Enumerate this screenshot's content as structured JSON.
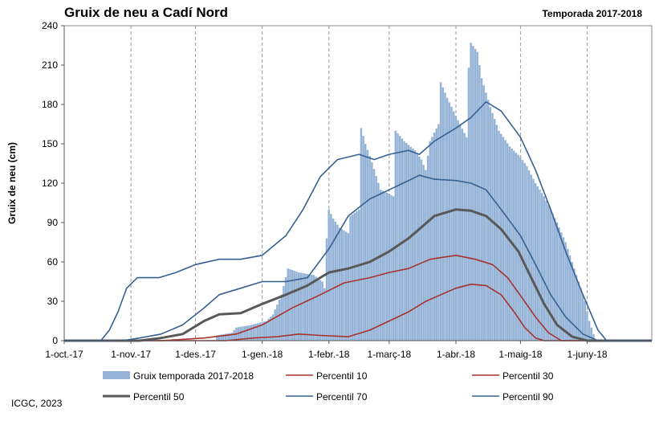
{
  "header": {
    "title": "Gruix de neu a Cadí Nord",
    "season": "Temporada 2017-2018"
  },
  "footer": {
    "credit": "ICGC, 2023"
  },
  "chart_data": {
    "type": "bar",
    "ylabel": "Gruix de neu (cm)",
    "ylim": [
      0,
      240
    ],
    "yticks": [
      0,
      30,
      60,
      90,
      120,
      150,
      180,
      210,
      240
    ],
    "grid": "vertical dashed at month starts",
    "xdomain": [
      "2017-10-01",
      "2018-07-01"
    ],
    "month_ticks": [
      {
        "date": "2017-10-01",
        "label": "1-oct.-17"
      },
      {
        "date": "2017-11-01",
        "label": "1-nov.-17"
      },
      {
        "date": "2017-12-01",
        "label": "1-des.-17"
      },
      {
        "date": "2018-01-01",
        "label": "1-gen.-18"
      },
      {
        "date": "2018-02-01",
        "label": "1-febr.-18"
      },
      {
        "date": "2018-03-01",
        "label": "1-març-18"
      },
      {
        "date": "2018-04-01",
        "label": "1-abr.-18"
      },
      {
        "date": "2018-05-01",
        "label": "1-maig-18"
      },
      {
        "date": "2018-06-01",
        "label": "1-juny-18"
      }
    ],
    "bars": {
      "name": "Gruix temporada 2017-2018",
      "color": "#95b3d7",
      "points": [
        [
          "2017-12-10",
          0
        ],
        [
          "2017-12-11",
          4
        ],
        [
          "2017-12-18",
          6
        ],
        [
          "2017-12-20",
          10
        ],
        [
          "2017-12-27",
          12
        ],
        [
          "2018-01-03",
          15
        ],
        [
          "2018-01-06",
          20
        ],
        [
          "2018-01-10",
          35
        ],
        [
          "2018-01-13",
          55
        ],
        [
          "2018-01-18",
          52
        ],
        [
          "2018-01-25",
          50
        ],
        [
          "2018-01-29",
          45
        ],
        [
          "2018-01-30",
          40
        ],
        [
          "2018-01-31",
          78
        ],
        [
          "2018-02-01",
          100
        ],
        [
          "2018-02-03",
          93
        ],
        [
          "2018-02-06",
          86
        ],
        [
          "2018-02-10",
          82
        ],
        [
          "2018-02-11",
          95
        ],
        [
          "2018-02-15",
          100
        ],
        [
          "2018-02-16",
          162
        ],
        [
          "2018-02-18",
          150
        ],
        [
          "2018-02-21",
          136
        ],
        [
          "2018-02-25",
          115
        ],
        [
          "2018-03-01",
          112
        ],
        [
          "2018-03-03",
          110
        ],
        [
          "2018-03-04",
          160
        ],
        [
          "2018-03-08",
          152
        ],
        [
          "2018-03-13",
          145
        ],
        [
          "2018-03-16",
          138
        ],
        [
          "2018-03-18",
          130
        ],
        [
          "2018-03-20",
          152
        ],
        [
          "2018-03-24",
          165
        ],
        [
          "2018-03-25",
          197
        ],
        [
          "2018-03-28",
          185
        ],
        [
          "2018-04-02",
          168
        ],
        [
          "2018-04-06",
          155
        ],
        [
          "2018-04-07",
          208
        ],
        [
          "2018-04-08",
          227
        ],
        [
          "2018-04-11",
          220
        ],
        [
          "2018-04-13",
          200
        ],
        [
          "2018-04-17",
          178
        ],
        [
          "2018-04-21",
          160
        ],
        [
          "2018-04-26",
          148
        ],
        [
          "2018-05-01",
          140
        ],
        [
          "2018-05-04",
          133
        ],
        [
          "2018-05-08",
          120
        ],
        [
          "2018-05-12",
          110
        ],
        [
          "2018-05-15",
          100
        ],
        [
          "2018-05-18",
          90
        ],
        [
          "2018-05-22",
          75
        ],
        [
          "2018-05-26",
          55
        ],
        [
          "2018-05-28",
          45
        ],
        [
          "2018-05-31",
          30
        ],
        [
          "2018-06-02",
          15
        ],
        [
          "2018-06-04",
          5
        ],
        [
          "2018-06-05",
          0
        ]
      ]
    },
    "series": [
      {
        "name": "Percentil 10",
        "color": "#a8322e",
        "width": 1.6,
        "points": [
          [
            "2017-10-01",
            0
          ],
          [
            "2017-12-15",
            0
          ],
          [
            "2017-12-28",
            2
          ],
          [
            "2018-01-08",
            3
          ],
          [
            "2018-01-18",
            5
          ],
          [
            "2018-01-28",
            4
          ],
          [
            "2018-02-10",
            3
          ],
          [
            "2018-02-20",
            8
          ],
          [
            "2018-03-01",
            15
          ],
          [
            "2018-03-10",
            22
          ],
          [
            "2018-03-18",
            30
          ],
          [
            "2018-03-25",
            35
          ],
          [
            "2018-04-01",
            40
          ],
          [
            "2018-04-08",
            43
          ],
          [
            "2018-04-15",
            42
          ],
          [
            "2018-04-22",
            35
          ],
          [
            "2018-04-28",
            22
          ],
          [
            "2018-05-03",
            10
          ],
          [
            "2018-05-08",
            2
          ],
          [
            "2018-05-12",
            0
          ],
          [
            "2018-07-01",
            0
          ]
        ]
      },
      {
        "name": "Percentil 30",
        "color": "#a8322e",
        "width": 1.6,
        "points": [
          [
            "2017-10-01",
            0
          ],
          [
            "2017-11-15",
            0
          ],
          [
            "2017-11-25",
            1
          ],
          [
            "2017-12-05",
            2
          ],
          [
            "2017-12-20",
            5
          ],
          [
            "2018-01-01",
            12
          ],
          [
            "2018-01-15",
            25
          ],
          [
            "2018-01-28",
            35
          ],
          [
            "2018-02-08",
            44
          ],
          [
            "2018-02-20",
            48
          ],
          [
            "2018-03-01",
            52
          ],
          [
            "2018-03-10",
            55
          ],
          [
            "2018-03-20",
            62
          ],
          [
            "2018-04-01",
            65
          ],
          [
            "2018-04-10",
            62
          ],
          [
            "2018-04-18",
            58
          ],
          [
            "2018-04-25",
            48
          ],
          [
            "2018-05-02",
            32
          ],
          [
            "2018-05-08",
            18
          ],
          [
            "2018-05-14",
            6
          ],
          [
            "2018-05-20",
            0
          ],
          [
            "2018-07-01",
            0
          ]
        ]
      },
      {
        "name": "Percentil 50",
        "color": "#595959",
        "width": 3.0,
        "points": [
          [
            "2017-10-01",
            0
          ],
          [
            "2017-11-05",
            0
          ],
          [
            "2017-11-15",
            2
          ],
          [
            "2017-11-25",
            5
          ],
          [
            "2017-12-05",
            15
          ],
          [
            "2017-12-12",
            20
          ],
          [
            "2017-12-22",
            21
          ],
          [
            "2018-01-01",
            28
          ],
          [
            "2018-01-12",
            35
          ],
          [
            "2018-01-22",
            42
          ],
          [
            "2018-02-01",
            52
          ],
          [
            "2018-02-10",
            55
          ],
          [
            "2018-02-20",
            60
          ],
          [
            "2018-03-01",
            68
          ],
          [
            "2018-03-10",
            78
          ],
          [
            "2018-03-15",
            85
          ],
          [
            "2018-03-22",
            95
          ],
          [
            "2018-04-01",
            100
          ],
          [
            "2018-04-08",
            99
          ],
          [
            "2018-04-15",
            95
          ],
          [
            "2018-04-22",
            85
          ],
          [
            "2018-04-30",
            68
          ],
          [
            "2018-05-06",
            48
          ],
          [
            "2018-05-12",
            28
          ],
          [
            "2018-05-18",
            12
          ],
          [
            "2018-05-25",
            3
          ],
          [
            "2018-06-01",
            0
          ],
          [
            "2018-07-01",
            0
          ]
        ]
      },
      {
        "name": "Percentil 70",
        "color": "#376092",
        "width": 1.6,
        "points": [
          [
            "2017-10-01",
            0
          ],
          [
            "2017-10-28",
            0
          ],
          [
            "2017-11-05",
            2
          ],
          [
            "2017-11-15",
            5
          ],
          [
            "2017-11-25",
            12
          ],
          [
            "2017-12-05",
            25
          ],
          [
            "2017-12-12",
            35
          ],
          [
            "2017-12-22",
            40
          ],
          [
            "2018-01-01",
            45
          ],
          [
            "2018-01-12",
            45
          ],
          [
            "2018-01-22",
            48
          ],
          [
            "2018-02-01",
            70
          ],
          [
            "2018-02-10",
            95
          ],
          [
            "2018-02-20",
            108
          ],
          [
            "2018-03-01",
            115
          ],
          [
            "2018-03-10",
            122
          ],
          [
            "2018-03-15",
            126
          ],
          [
            "2018-03-22",
            123
          ],
          [
            "2018-04-01",
            122
          ],
          [
            "2018-04-08",
            120
          ],
          [
            "2018-04-15",
            115
          ],
          [
            "2018-04-22",
            100
          ],
          [
            "2018-05-01",
            80
          ],
          [
            "2018-05-08",
            58
          ],
          [
            "2018-05-15",
            35
          ],
          [
            "2018-05-22",
            18
          ],
          [
            "2018-05-30",
            5
          ],
          [
            "2018-06-06",
            0
          ],
          [
            "2018-07-01",
            0
          ]
        ]
      },
      {
        "name": "Percentil 90",
        "color": "#376092",
        "width": 1.6,
        "points": [
          [
            "2017-10-01",
            0
          ],
          [
            "2017-10-18",
            0
          ],
          [
            "2017-10-22",
            8
          ],
          [
            "2017-10-26",
            22
          ],
          [
            "2017-10-30",
            40
          ],
          [
            "2017-11-04",
            48
          ],
          [
            "2017-11-14",
            48
          ],
          [
            "2017-11-22",
            52
          ],
          [
            "2017-12-01",
            58
          ],
          [
            "2017-12-12",
            62
          ],
          [
            "2017-12-22",
            62
          ],
          [
            "2018-01-01",
            65
          ],
          [
            "2018-01-12",
            80
          ],
          [
            "2018-01-20",
            100
          ],
          [
            "2018-01-28",
            125
          ],
          [
            "2018-02-05",
            138
          ],
          [
            "2018-02-15",
            142
          ],
          [
            "2018-02-22",
            138
          ],
          [
            "2018-03-01",
            142
          ],
          [
            "2018-03-10",
            145
          ],
          [
            "2018-03-15",
            142
          ],
          [
            "2018-03-22",
            152
          ],
          [
            "2018-04-01",
            162
          ],
          [
            "2018-04-08",
            170
          ],
          [
            "2018-04-15",
            182
          ],
          [
            "2018-04-22",
            175
          ],
          [
            "2018-05-01",
            155
          ],
          [
            "2018-05-08",
            130
          ],
          [
            "2018-05-15",
            100
          ],
          [
            "2018-05-22",
            68
          ],
          [
            "2018-05-30",
            35
          ],
          [
            "2018-06-06",
            8
          ],
          [
            "2018-06-10",
            0
          ],
          [
            "2018-07-01",
            0
          ]
        ]
      }
    ],
    "legend": {
      "placement": "bottom",
      "entries": [
        {
          "label": "Gruix temporada 2017-2018",
          "kind": "bar",
          "color": "#95b3d7"
        },
        {
          "label": "Percentil 10",
          "kind": "line",
          "color": "#a8322e",
          "width": 1.6
        },
        {
          "label": "Percentil 30",
          "kind": "line",
          "color": "#a8322e",
          "width": 1.6
        },
        {
          "label": "Percentil 50",
          "kind": "line",
          "color": "#595959",
          "width": 3.0
        },
        {
          "label": "Percentil 70",
          "kind": "line",
          "color": "#376092",
          "width": 1.6
        },
        {
          "label": "Percentil 90",
          "kind": "line",
          "color": "#376092",
          "width": 1.6
        }
      ]
    }
  }
}
